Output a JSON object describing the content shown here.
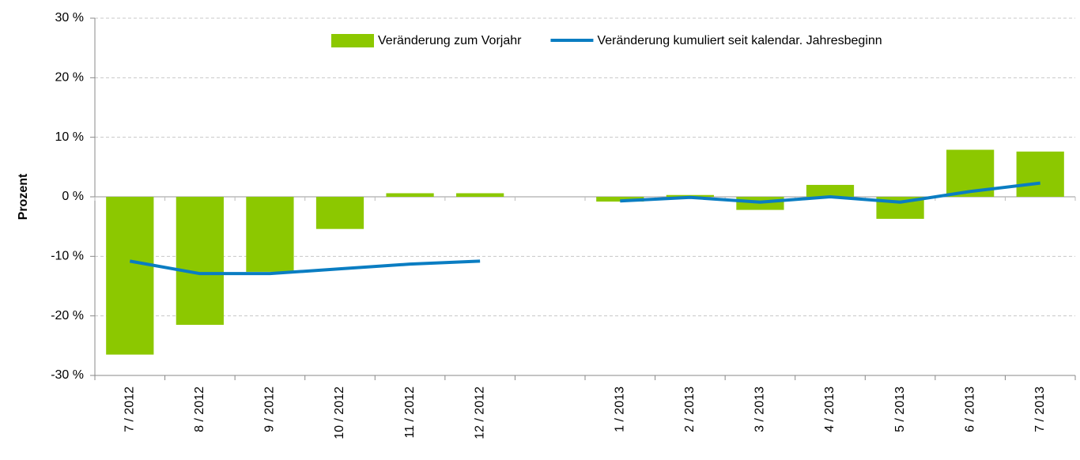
{
  "chart_data": {
    "type": "bar-line",
    "y_label": "Prozent",
    "categories": [
      "7 / 2012",
      "8 / 2012",
      "9 / 2012",
      "10 / 2012",
      "11 / 2012",
      "12 / 2012",
      null,
      "1 / 2013",
      "2 / 2013",
      "3 / 2013",
      "4 / 2013",
      "5 / 2013",
      "6 / 2013",
      "7 / 2013"
    ],
    "series": [
      {
        "name": "Veränderung zum Vorjahr",
        "type": "bar",
        "color": "#8cc800",
        "values": [
          -26.5,
          -21.5,
          -12.6,
          -5.4,
          0.6,
          0.6,
          null,
          -0.8,
          0.3,
          -2.2,
          2.0,
          -3.7,
          7.9,
          7.6
        ]
      },
      {
        "name": "Veränderung kumuliert seit kalendar. Jahresbeginn",
        "type": "line",
        "color": "#0a7dc2",
        "values": [
          -10.8,
          -12.9,
          -12.9,
          -12.1,
          -11.3,
          -10.8,
          null,
          -0.7,
          -0.1,
          -0.9,
          0.0,
          -0.9,
          0.9,
          2.3
        ]
      }
    ],
    "ylim": [
      -30,
      30
    ],
    "yticks": [
      {
        "value": -30,
        "label": "-30 %"
      },
      {
        "value": -20,
        "label": "-20 %"
      },
      {
        "value": -10,
        "label": "-10 %"
      },
      {
        "value": 0,
        "label": "0 %"
      },
      {
        "value": 10,
        "label": "10 %"
      },
      {
        "value": 20,
        "label": "20 %"
      },
      {
        "value": 30,
        "label": "30 %"
      }
    ],
    "grid": true
  }
}
